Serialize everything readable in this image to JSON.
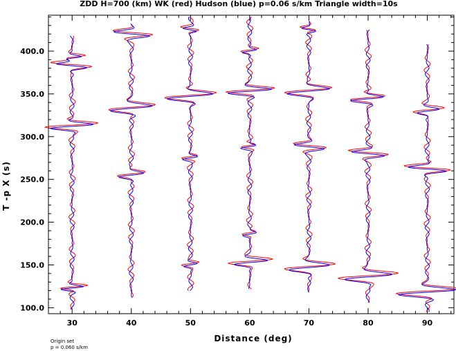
{
  "chart_data": {
    "type": "line",
    "title": "ZDD H=700 (km) WK (red) Hudson (blue) p=0.06 s/km Triangle width=10s",
    "xlabel": "Distance (deg)",
    "ylabel": "T -p X (s)",
    "xlim": [
      26,
      94.5
    ],
    "ylim": [
      93,
      442
    ],
    "x_ticks": [
      "30",
      "40",
      "50",
      "60",
      "70",
      "80",
      "90"
    ],
    "y_ticks": [
      "100.0",
      "150.0",
      "200.0",
      "250.0",
      "300.0",
      "350.0",
      "400.0"
    ],
    "x_tick_values": [
      30,
      40,
      50,
      60,
      70,
      80,
      90
    ],
    "y_tick_values": [
      100,
      150,
      200,
      250,
      300,
      350,
      400
    ],
    "series": [
      {
        "name": "WK",
        "color": "#ff0000"
      },
      {
        "name": "Hudson",
        "color": "#0000ff"
      }
    ],
    "traces": [
      {
        "distance": 30,
        "t_start": 98,
        "t_end": 418,
        "arrivals": [
          {
            "t": 123,
            "amp": 2.5,
            "w": 3
          },
          {
            "t": 312,
            "amp": 4.5,
            "w": 4
          },
          {
            "t": 383,
            "amp": -3.5,
            "w": 4
          },
          {
            "t": 392,
            "amp": 2.0,
            "w": 3
          }
        ]
      },
      {
        "distance": 40,
        "t_start": 112,
        "t_end": 432,
        "arrivals": [
          {
            "t": 255,
            "amp": 2.5,
            "w": 4
          },
          {
            "t": 333,
            "amp": 4.5,
            "w": 5
          },
          {
            "t": 420,
            "amp": -3.5,
            "w": 4
          }
        ]
      },
      {
        "distance": 50,
        "t_start": 120,
        "t_end": 440,
        "arrivals": [
          {
            "t": 150,
            "amp": 1.5,
            "w": 3
          },
          {
            "t": 275,
            "amp": 1.5,
            "w": 3
          },
          {
            "t": 347,
            "amp": 5.0,
            "w": 5
          },
          {
            "t": 425,
            "amp": -1.5,
            "w": 3
          }
        ]
      },
      {
        "distance": 60,
        "t_start": 122,
        "t_end": 440,
        "arrivals": [
          {
            "t": 153,
            "amp": 3.5,
            "w": 4
          },
          {
            "t": 186,
            "amp": 1.2,
            "w": 3
          },
          {
            "t": 288,
            "amp": 1.5,
            "w": 3
          },
          {
            "t": 353,
            "amp": 4.5,
            "w": 4
          },
          {
            "t": 400,
            "amp": 1.5,
            "w": 3
          }
        ]
      },
      {
        "distance": 70,
        "t_start": 118,
        "t_end": 435,
        "arrivals": [
          {
            "t": 147,
            "amp": 4.5,
            "w": 5
          },
          {
            "t": 288,
            "amp": -3.0,
            "w": 4
          },
          {
            "t": 353,
            "amp": 4.5,
            "w": 5
          },
          {
            "t": 425,
            "amp": -1.5,
            "w": 3
          }
        ]
      },
      {
        "distance": 80,
        "t_start": 106,
        "t_end": 425,
        "arrivals": [
          {
            "t": 136,
            "amp": 5.0,
            "w": 5
          },
          {
            "t": 280,
            "amp": -3.5,
            "w": 4
          },
          {
            "t": 344,
            "amp": 3.5,
            "w": 4
          }
        ]
      },
      {
        "distance": 90,
        "t_start": 95,
        "t_end": 408,
        "arrivals": [
          {
            "t": 118,
            "amp": 6.0,
            "w": 5
          },
          {
            "t": 262,
            "amp": -4.0,
            "w": 4
          },
          {
            "t": 330,
            "amp": 2.5,
            "w": 4
          }
        ]
      }
    ]
  },
  "footer": {
    "line1": "Origin set",
    "line2": "p = 0.060 s/km"
  }
}
